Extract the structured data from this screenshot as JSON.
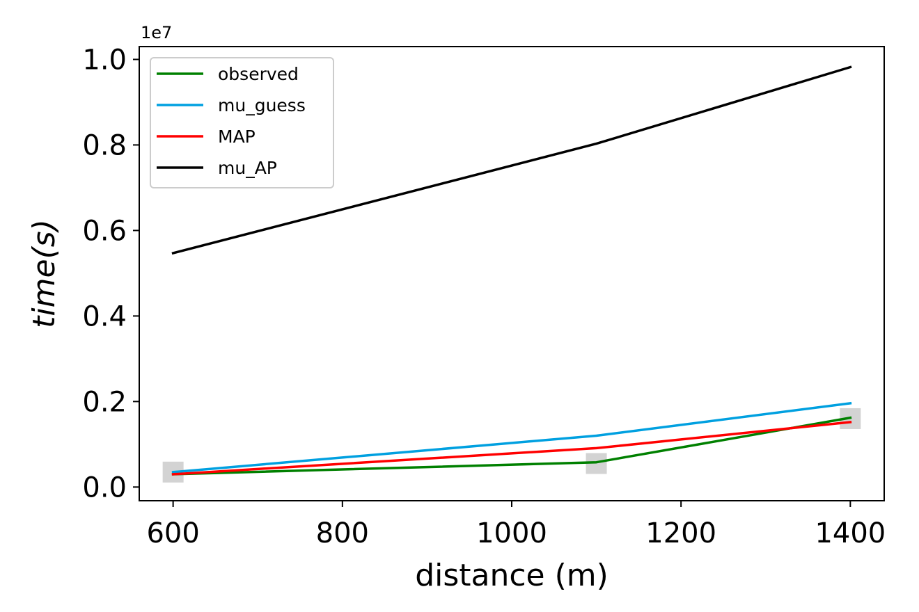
{
  "chart_data": {
    "type": "line",
    "x": [
      600,
      1100,
      1400
    ],
    "series": [
      {
        "name": "observed",
        "color": "#008000",
        "values": [
          300000,
          580000,
          1620000
        ]
      },
      {
        "name": "mu_guess",
        "color": "#00a0e0",
        "values": [
          350000,
          1200000,
          1960000
        ]
      },
      {
        "name": "MAP",
        "color": "#ff0000",
        "values": [
          300000,
          910000,
          1520000
        ]
      },
      {
        "name": "mu_AP",
        "color": "#000000",
        "values": [
          5470000,
          8030000,
          9820000
        ]
      }
    ],
    "observed_markers": {
      "color": "#d3d3d3",
      "points": [
        [
          600,
          350000
        ],
        [
          1100,
          550000
        ],
        [
          1400,
          1600000
        ]
      ]
    },
    "xlabel": "distance (m)",
    "ylabel": "time(s)",
    "y_offset_label": "1e7",
    "xticks": [
      600,
      800,
      1000,
      1200,
      1400
    ],
    "xtick_labels": [
      "600",
      "800",
      "1000",
      "1200",
      "1400"
    ],
    "yticks": [
      0.0,
      0.2,
      0.4,
      0.6,
      0.8,
      1.0
    ],
    "ytick_labels": [
      "0.0",
      "0.2",
      "0.4",
      "0.6",
      "0.8",
      "1.0"
    ],
    "xlim": [
      560,
      1440
    ],
    "ylim": [
      -320000,
      10300000
    ],
    "grid": false,
    "legend_position": "top-left"
  }
}
